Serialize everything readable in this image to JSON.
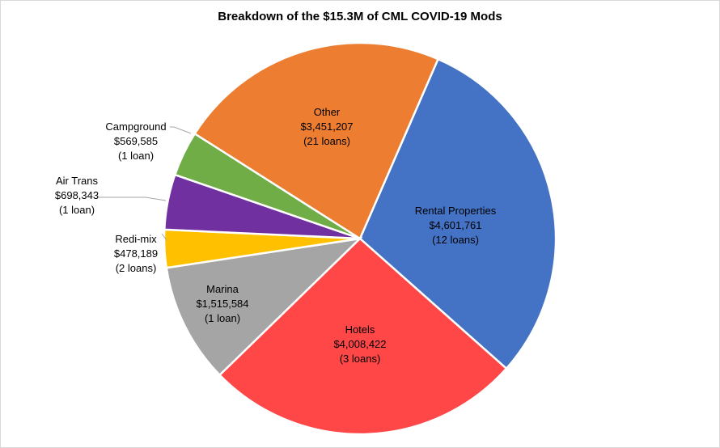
{
  "chart_data": {
    "type": "pie",
    "title": "Breakdown of the $15.3M of CML COVID-19 Mods",
    "slices": [
      {
        "name": "Rental Properties",
        "value": 4601761,
        "value_label": "$4,601,761",
        "count_label": "(12 loans)",
        "color": "#4472C4"
      },
      {
        "name": "Hotels",
        "value": 4008422,
        "value_label": "$4,008,422",
        "count_label": "(3 loans)",
        "color": "#FF4747"
      },
      {
        "name": "Marina",
        "value": 1515584,
        "value_label": "$1,515,584",
        "count_label": "(1 loan)",
        "color": "#A5A5A5"
      },
      {
        "name": "Redi-mix",
        "value": 478189,
        "value_label": "$478,189",
        "count_label": "(2 loans)",
        "color": "#FFC000"
      },
      {
        "name": "Air Trans",
        "value": 698343,
        "value_label": "$698,343",
        "count_label": "(1 loan)",
        "color": "#7030A0"
      },
      {
        "name": "Campground",
        "value": 569585,
        "value_label": "$569,585",
        "count_label": "(1 loan)",
        "color": "#70AD47"
      },
      {
        "name": "Other",
        "value": 3451207,
        "value_label": "$3,451,207",
        "count_label": "(21 loans)",
        "color": "#ED7D31"
      }
    ],
    "legend": "none",
    "direction": "clockwise"
  }
}
